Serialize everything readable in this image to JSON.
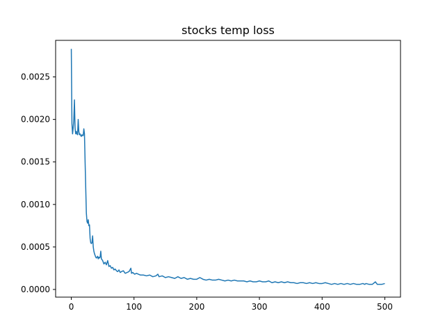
{
  "chart_data": {
    "type": "line",
    "title": "stocks temp loss",
    "xlabel": "",
    "ylabel": "",
    "xlim": [
      -25,
      525
    ],
    "ylim": [
      -9e-05,
      0.00293
    ],
    "grid": false,
    "x_ticks": [
      0,
      100,
      200,
      300,
      400,
      500
    ],
    "x_tick_labels": [
      "0",
      "100",
      "200",
      "300",
      "400",
      "500"
    ],
    "y_ticks": [
      0.0,
      0.0005,
      0.001,
      0.0015,
      0.002,
      0.0025
    ],
    "y_tick_labels": [
      "0.0000",
      "0.0005",
      "0.0010",
      "0.0015",
      "0.0020",
      "0.0025"
    ],
    "series": [
      {
        "color": "#1f77b4",
        "x": [
          0,
          1,
          2,
          3,
          4,
          5,
          6,
          7,
          8,
          9,
          10,
          11,
          12,
          13,
          14,
          15,
          16,
          17,
          18,
          19,
          20,
          21,
          22,
          23,
          24,
          25,
          26,
          27,
          28,
          29,
          30,
          31,
          32,
          33,
          34,
          35,
          36,
          37,
          38,
          39,
          40,
          41,
          42,
          43,
          44,
          45,
          46,
          47,
          48,
          49,
          50,
          52,
          54,
          56,
          58,
          60,
          62,
          64,
          66,
          68,
          70,
          72,
          74,
          76,
          78,
          80,
          83,
          86,
          89,
          92,
          95,
          96,
          98,
          101,
          104,
          107,
          110,
          115,
          120,
          125,
          130,
          135,
          138,
          140,
          145,
          150,
          155,
          160,
          165,
          170,
          175,
          180,
          185,
          190,
          195,
          200,
          205,
          210,
          215,
          220,
          225,
          230,
          235,
          240,
          245,
          250,
          255,
          260,
          265,
          270,
          275,
          280,
          285,
          290,
          295,
          300,
          305,
          310,
          315,
          320,
          325,
          330,
          335,
          340,
          345,
          350,
          355,
          360,
          365,
          370,
          375,
          380,
          385,
          390,
          395,
          400,
          405,
          410,
          415,
          420,
          425,
          430,
          435,
          440,
          445,
          450,
          455,
          460,
          465,
          468,
          470,
          475,
          480,
          485,
          488,
          490,
          495,
          500
        ],
        "values": [
          0.00283,
          0.00195,
          0.00183,
          0.0019,
          0.002,
          0.00223,
          0.0019,
          0.00183,
          0.00186,
          0.00183,
          0.00182,
          0.002,
          0.00186,
          0.00182,
          0.00183,
          0.00181,
          0.0018,
          0.00182,
          0.00181,
          0.00181,
          0.00189,
          0.00183,
          0.0015,
          0.0012,
          0.0009,
          0.0008,
          0.00078,
          0.00082,
          0.00075,
          0.00076,
          0.0006,
          0.00055,
          0.00054,
          0.00055,
          0.00063,
          0.0005,
          0.00045,
          0.00042,
          0.0004,
          0.00038,
          0.00037,
          0.00038,
          0.00039,
          0.00036,
          0.00038,
          0.00037,
          0.00038,
          0.00045,
          0.00036,
          0.00035,
          0.00034,
          0.0003,
          0.00032,
          0.00029,
          0.00034,
          0.00027,
          0.00028,
          0.00025,
          0.00026,
          0.00023,
          0.00024,
          0.00022,
          0.00021,
          0.00023,
          0.0002,
          0.00021,
          0.00022,
          0.00019,
          0.0002,
          0.00021,
          0.00025,
          0.00019,
          0.0002,
          0.00018,
          0.00019,
          0.00018,
          0.00017,
          0.00017,
          0.00016,
          0.00017,
          0.00015,
          0.00016,
          0.00018,
          0.00015,
          0.00016,
          0.00014,
          0.00015,
          0.00014,
          0.00013,
          0.00015,
          0.00013,
          0.00014,
          0.00012,
          0.00013,
          0.00012,
          0.00012,
          0.00014,
          0.00012,
          0.00011,
          0.00012,
          0.00011,
          0.00011,
          0.00012,
          0.00011,
          0.0001,
          0.00011,
          0.0001,
          0.00011,
          0.0001,
          0.0001,
          0.0001,
          9e-05,
          0.0001,
          9e-05,
          9e-05,
          0.0001,
          9e-05,
          9e-05,
          0.0001,
          8e-05,
          9e-05,
          8e-05,
          9e-05,
          8e-05,
          9e-05,
          8e-05,
          8e-05,
          7e-05,
          8e-05,
          8e-05,
          7e-05,
          8e-05,
          7e-05,
          8e-05,
          7e-05,
          7e-05,
          8e-05,
          7e-05,
          6e-05,
          7e-05,
          6e-05,
          7e-05,
          6e-05,
          7e-05,
          6e-05,
          7e-05,
          6e-05,
          6e-05,
          7e-05,
          6e-05,
          7e-05,
          6e-05,
          6e-05,
          9e-05,
          6e-05,
          6e-05,
          6e-05,
          7e-05
        ]
      }
    ]
  }
}
